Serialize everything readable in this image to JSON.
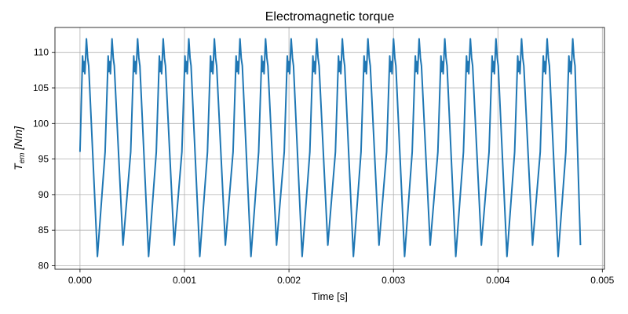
{
  "chart_data": {
    "type": "line",
    "title": "Electromagnetic torque",
    "xlabel": "Time [s]",
    "ylabel": {
      "main": "T",
      "subscript": "em",
      "unit": " [Nm]"
    },
    "xlim": [
      -0.00024,
      0.00502
    ],
    "ylim": [
      79.5,
      113.5
    ],
    "xticks": [
      0.0,
      0.001,
      0.002,
      0.003,
      0.004,
      0.005
    ],
    "xtick_labels": [
      "0.000",
      "0.001",
      "0.002",
      "0.003",
      "0.004",
      "0.005"
    ],
    "yticks": [
      80,
      85,
      90,
      95,
      100,
      105,
      110
    ],
    "ytick_labels": [
      "80",
      "85",
      "90",
      "95",
      "100",
      "105",
      "110"
    ],
    "grid": true,
    "series_color": "#1f77b4",
    "waveform": {
      "start_x": 0.0,
      "end_x": 0.00479,
      "start_y": 96,
      "period": 0.000245,
      "min": 81.3,
      "max": 111.9,
      "peak_levels": [
        109.5,
        106.9,
        108.7,
        107.0,
        111.9
      ],
      "trough_levels": [
        81.3,
        82.9
      ]
    }
  }
}
